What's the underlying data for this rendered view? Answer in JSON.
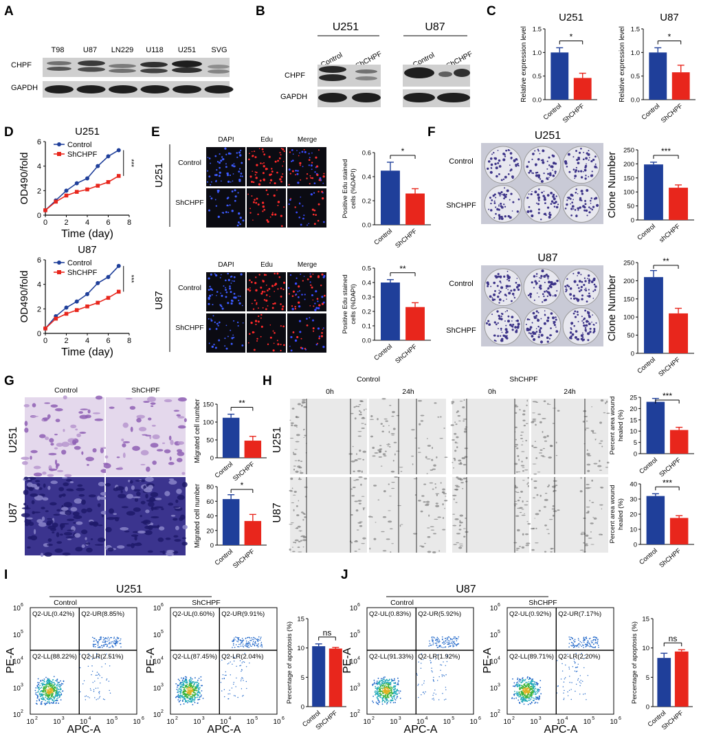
{
  "colors": {
    "control": "#1f3f9a",
    "shchpf": "#e8261c",
    "blot_bg": "#d4d4d4",
    "micro_bg": "#0b0b12",
    "stain_violet": "#4a3f9e",
    "facs_bg": "#ffffff"
  },
  "panel_letters": [
    "A",
    "B",
    "C",
    "D",
    "E",
    "F",
    "G",
    "H",
    "I",
    "J"
  ],
  "panelA": {
    "lanes": [
      "T98",
      "U87",
      "LN229",
      "U118",
      "U251",
      "SVG"
    ],
    "rows": [
      "CHPF",
      "GAPDH"
    ]
  },
  "panelB": {
    "groups": [
      "U251",
      "U87"
    ],
    "lanes": [
      "Control",
      "ShCHPF"
    ],
    "rows": [
      "CHPF",
      "GAPDH"
    ]
  },
  "panelC": {
    "charts": [
      {
        "title": "U251",
        "ylabel": "Relative expression level",
        "categories": [
          "Control",
          "ShCHPF"
        ],
        "values": [
          1.0,
          0.46
        ],
        "errors": [
          0.1,
          0.1
        ],
        "ylim": [
          0,
          1.5
        ],
        "yticks": [
          "0.0",
          "0.5",
          "1.0",
          "1.5"
        ],
        "sig": "*"
      },
      {
        "title": "U87",
        "ylabel": "Relative expression level",
        "categories": [
          "Control",
          "ShCHPF"
        ],
        "values": [
          1.0,
          0.58
        ],
        "errors": [
          0.1,
          0.15
        ],
        "ylim": [
          0,
          1.5
        ],
        "yticks": [
          "0.0",
          "0.5",
          "1.0",
          "1.5"
        ],
        "sig": "*"
      }
    ]
  },
  "panelD": {
    "charts": [
      {
        "title": "U251",
        "xlabel": "Time (day)",
        "ylabel": "OD490/fold",
        "legend": [
          "Control",
          "ShCHPF"
        ],
        "sig": "***",
        "x": [
          0,
          1,
          2,
          3,
          4,
          5,
          6,
          7
        ],
        "series": [
          {
            "name": "Control",
            "values": [
              0.4,
              1.2,
              2.0,
              2.6,
              3.0,
              4.0,
              4.8,
              5.3
            ]
          },
          {
            "name": "ShCHPF",
            "values": [
              0.4,
              1.1,
              1.6,
              1.9,
              2.1,
              2.4,
              2.7,
              3.2
            ]
          }
        ],
        "ylim": [
          0,
          6
        ],
        "xlim": [
          0,
          8
        ],
        "yticks": [
          "0",
          "2",
          "4",
          "6"
        ],
        "xticks": [
          "0",
          "2",
          "4",
          "6",
          "8"
        ]
      },
      {
        "title": "U87",
        "xlabel": "Time (day)",
        "ylabel": "OD490/fold",
        "legend": [
          "Control",
          "ShCHPF"
        ],
        "sig": "***",
        "x": [
          0,
          1,
          2,
          3,
          4,
          5,
          6,
          7
        ],
        "series": [
          {
            "name": "Control",
            "values": [
              0.4,
              1.4,
              2.1,
              2.6,
              3.2,
              4.1,
              4.6,
              5.5
            ]
          },
          {
            "name": "ShCHPF",
            "values": [
              0.4,
              1.2,
              1.6,
              1.9,
              2.2,
              2.5,
              2.9,
              3.4
            ]
          }
        ],
        "ylim": [
          0,
          6
        ],
        "xlim": [
          0,
          8
        ],
        "yticks": [
          "0",
          "2",
          "4",
          "6"
        ],
        "xticks": [
          "0",
          "2",
          "4",
          "6",
          "8"
        ]
      }
    ]
  },
  "panelE": {
    "cols": [
      "DAPI",
      "Edu",
      "Merge"
    ],
    "rows": [
      "Control",
      "ShCHPF"
    ],
    "cells": [
      "U251",
      "U87"
    ],
    "charts": [
      {
        "ylabel": "Positive Edu stained cells (%DAPI)",
        "categories": [
          "Control",
          "ShCHPF"
        ],
        "values": [
          0.45,
          0.26
        ],
        "errors": [
          0.07,
          0.04
        ],
        "ylim": [
          0,
          0.6
        ],
        "yticks": [
          "0.0",
          "0.2",
          "0.4",
          "0.6"
        ],
        "sig": "*"
      },
      {
        "ylabel": "Positive Edu stained cells (%DAPI)",
        "categories": [
          "Control",
          "ShCHPF"
        ],
        "values": [
          0.4,
          0.23
        ],
        "errors": [
          0.02,
          0.03
        ],
        "ylim": [
          0,
          0.5
        ],
        "yticks": [
          "0.0",
          "0.1",
          "0.2",
          "0.3",
          "0.4",
          "0.5"
        ],
        "sig": "**"
      }
    ]
  },
  "panelF": {
    "cells": [
      "U251",
      "U87"
    ],
    "rows": [
      "Control",
      "ShCHPF"
    ],
    "charts": [
      {
        "ylabel": "Clone Number",
        "categories": [
          "Control",
          "shCHPF"
        ],
        "values": [
          198,
          115
        ],
        "errors": [
          8,
          10
        ],
        "ylim": [
          0,
          250
        ],
        "yticks": [
          "0",
          "50",
          "100",
          "150",
          "200",
          "250"
        ],
        "sig": "***"
      },
      {
        "ylabel": "Clone Number",
        "categories": [
          "Control",
          "ShCHPF"
        ],
        "values": [
          210,
          110
        ],
        "errors": [
          18,
          14
        ],
        "ylim": [
          0,
          250
        ],
        "yticks": [
          "0",
          "50",
          "100",
          "150",
          "200",
          "250"
        ],
        "sig": "**"
      }
    ]
  },
  "panelG": {
    "cols": [
      "Control",
      "ShCHPF"
    ],
    "cells": [
      "U251",
      "U87"
    ],
    "charts": [
      {
        "ylabel": "Migrated cell number",
        "categories": [
          "Control",
          "ShCHPF"
        ],
        "values": [
          112,
          48
        ],
        "errors": [
          10,
          12
        ],
        "ylim": [
          0,
          150
        ],
        "yticks": [
          "0",
          "50",
          "100",
          "150"
        ],
        "sig": "**"
      },
      {
        "ylabel": "Migrated cell number",
        "categories": [
          "Control",
          "ShCHPF"
        ],
        "values": [
          63,
          33
        ],
        "errors": [
          6,
          9
        ],
        "ylim": [
          0,
          80
        ],
        "yticks": [
          "0",
          "20",
          "40",
          "60",
          "80"
        ],
        "sig": "*"
      }
    ]
  },
  "panelH": {
    "groups": [
      "Control",
      "ShCHPF"
    ],
    "times": [
      "0h",
      "24h",
      "0h",
      "24h"
    ],
    "cells": [
      "U251",
      "U87"
    ],
    "charts": [
      {
        "ylabel": "Percent area wound healed (%)",
        "categories": [
          "Control",
          "ShCHPF"
        ],
        "values": [
          23,
          10.5
        ],
        "errors": [
          1.5,
          1.2
        ],
        "ylim": [
          0,
          25
        ],
        "yticks": [
          "0",
          "5",
          "10",
          "15",
          "20",
          "25"
        ],
        "sig": "***"
      },
      {
        "ylabel": "Percent area wound healed (%)",
        "categories": [
          "Control",
          "ShCHPF"
        ],
        "values": [
          32,
          17.5
        ],
        "errors": [
          1.5,
          1.5
        ],
        "ylim": [
          0,
          40
        ],
        "yticks": [
          "0",
          "10",
          "20",
          "30",
          "40"
        ],
        "sig": "***"
      }
    ]
  },
  "panelI": {
    "title": "U251",
    "groups": [
      "Control",
      "ShCHPF"
    ],
    "xlabel": "APC-A",
    "ylabel": "PE-A",
    "quadrants": [
      {
        "UL": "Q2-UL(0.42%)",
        "UR": "Q2-UR(8.85%)",
        "LL": "Q2-LL(88.22%)",
        "LR": "Q2-LR(2.51%)"
      },
      {
        "UL": "Q2-UL(0.60%)",
        "UR": "Q2-UR(9.91%)",
        "LL": "Q2-LL(87.45%)",
        "LR": "Q2-LR(2.04%)"
      }
    ],
    "chart": {
      "ylabel": "Percentage of apoptosis (%)",
      "categories": [
        "Control",
        "ShCHPF"
      ],
      "values": [
        10.3,
        9.9
      ],
      "errors": [
        0.4,
        0.2
      ],
      "ylim": [
        0,
        15
      ],
      "yticks": [
        "0",
        "5",
        "10",
        "15"
      ],
      "sig": "ns"
    }
  },
  "panelJ": {
    "title": "U87",
    "groups": [
      "Control",
      "ShCHPF"
    ],
    "xlabel": "APC-A",
    "ylabel": "PE-A",
    "quadrants": [
      {
        "UL": "Q2-UL(0.83%)",
        "UR": "Q2-UR(5.92%)",
        "LL": "Q2-LL(91.33%)",
        "LR": "Q2-LR(1.92%)"
      },
      {
        "UL": "Q2-UL(0.92%)",
        "UR": "Q2-UR(7.17%)",
        "LL": "Q2-LL(89.71%)",
        "LR": "Q2-LR(2.20%)"
      }
    ],
    "chart": {
      "ylabel": "Percentage of apoptosis (%)",
      "categories": [
        "Control",
        "ShCHPF"
      ],
      "values": [
        8.3,
        9.4
      ],
      "errors": [
        0.8,
        0.3
      ],
      "ylim": [
        0,
        15
      ],
      "yticks": [
        "0",
        "5",
        "10",
        "15"
      ],
      "sig": "ns"
    }
  },
  "facs_ticks": [
    "10",
    "2",
    "10",
    "3",
    "10",
    "4",
    "10",
    "5",
    "10",
    "6"
  ],
  "chart_data": [
    {
      "type": "bar",
      "title": "U251",
      "categories": [
        "Control",
        "ShCHPF"
      ],
      "values": [
        1.0,
        0.46
      ],
      "ylabel": "Relative expression level",
      "ylim": [
        0,
        1.5
      ]
    },
    {
      "type": "bar",
      "title": "U87",
      "categories": [
        "Control",
        "ShCHPF"
      ],
      "values": [
        1.0,
        0.58
      ],
      "ylabel": "Relative expression level",
      "ylim": [
        0,
        1.5
      ]
    },
    {
      "type": "line",
      "title": "U251",
      "x": [
        0,
        1,
        2,
        3,
        4,
        5,
        6,
        7
      ],
      "series": [
        {
          "name": "Control",
          "values": [
            0.4,
            1.2,
            2.0,
            2.6,
            3.0,
            4.0,
            4.8,
            5.3
          ]
        },
        {
          "name": "ShCHPF",
          "values": [
            0.4,
            1.1,
            1.6,
            1.9,
            2.1,
            2.4,
            2.7,
            3.2
          ]
        }
      ],
      "xlabel": "Time (day)",
      "ylabel": "OD490/fold"
    },
    {
      "type": "line",
      "title": "U87",
      "x": [
        0,
        1,
        2,
        3,
        4,
        5,
        6,
        7
      ],
      "series": [
        {
          "name": "Control",
          "values": [
            0.4,
            1.4,
            2.1,
            2.6,
            3.2,
            4.1,
            4.6,
            5.5
          ]
        },
        {
          "name": "ShCHPF",
          "values": [
            0.4,
            1.2,
            1.6,
            1.9,
            2.2,
            2.5,
            2.9,
            3.4
          ]
        }
      ],
      "xlabel": "Time (day)",
      "ylabel": "OD490/fold"
    },
    {
      "type": "bar",
      "categories": [
        "Control",
        "ShCHPF"
      ],
      "values": [
        0.45,
        0.26
      ],
      "ylabel": "Positive Edu stained cells (%DAPI)"
    },
    {
      "type": "bar",
      "categories": [
        "Control",
        "ShCHPF"
      ],
      "values": [
        0.4,
        0.23
      ],
      "ylabel": "Positive Edu stained cells (%DAPI)"
    },
    {
      "type": "bar",
      "categories": [
        "Control",
        "shCHPF"
      ],
      "values": [
        198,
        115
      ],
      "ylabel": "Clone Number"
    },
    {
      "type": "bar",
      "categories": [
        "Control",
        "ShCHPF"
      ],
      "values": [
        210,
        110
      ],
      "ylabel": "Clone Number"
    },
    {
      "type": "bar",
      "categories": [
        "Control",
        "ShCHPF"
      ],
      "values": [
        112,
        48
      ],
      "ylabel": "Migrated cell number"
    },
    {
      "type": "bar",
      "categories": [
        "Control",
        "ShCHPF"
      ],
      "values": [
        63,
        33
      ],
      "ylabel": "Migrated cell number"
    },
    {
      "type": "bar",
      "categories": [
        "Control",
        "ShCHPF"
      ],
      "values": [
        23,
        10.5
      ],
      "ylabel": "Percent area wound healed (%)"
    },
    {
      "type": "bar",
      "categories": [
        "Control",
        "ShCHPF"
      ],
      "values": [
        32,
        17.5
      ],
      "ylabel": "Percent area wound healed (%)"
    },
    {
      "type": "bar",
      "categories": [
        "Control",
        "ShCHPF"
      ],
      "values": [
        10.3,
        9.9
      ],
      "ylabel": "Percentage of apoptosis (%)"
    },
    {
      "type": "bar",
      "categories": [
        "Control",
        "ShCHPF"
      ],
      "values": [
        8.3,
        9.4
      ],
      "ylabel": "Percentage of apoptosis (%)"
    }
  ]
}
